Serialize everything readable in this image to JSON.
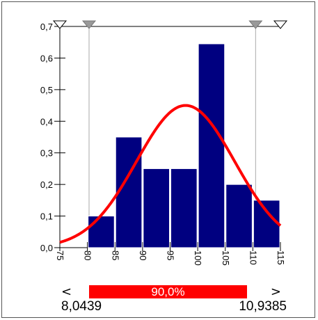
{
  "chart_data": {
    "type": "bar",
    "bins": [
      {
        "from": 80,
        "to": 85,
        "value": 0.1
      },
      {
        "from": 85,
        "to": 90,
        "value": 0.35
      },
      {
        "from": 90,
        "to": 95,
        "value": 0.25
      },
      {
        "from": 95,
        "to": 100,
        "value": 0.25
      },
      {
        "from": 100,
        "to": 105,
        "value": 0.645
      },
      {
        "from": 105,
        "to": 110,
        "value": 0.2
      },
      {
        "from": 110,
        "to": 115,
        "value": 0.15
      }
    ],
    "curve": {
      "type": "normal",
      "mean": 97.8,
      "peak": 0.45,
      "sd": 8.9
    },
    "xlim": [
      75,
      115
    ],
    "ylim": [
      0,
      0.7
    ],
    "x_ticks": [
      "75",
      "80",
      "85",
      "90",
      "95",
      "100",
      "105",
      "110",
      "115"
    ],
    "y_ticks": [
      "0,0",
      "0,1",
      "0,2",
      "0,3",
      "0,4",
      "0,5",
      "0,6",
      "0,7"
    ],
    "markers": {
      "left_x": 80.3,
      "right_x": 110.5
    },
    "colors": {
      "bar": "#000080",
      "curve": "#ff0000",
      "bar_stroke": "#ffffff"
    },
    "grid": false
  },
  "range_bar": {
    "left_arrow": "<",
    "right_arrow": ">",
    "percent_label": "90,0%",
    "percent_value": 0.9,
    "left_value": "8,0439",
    "right_value": "10,9385",
    "fill_color": "#ff0000"
  }
}
